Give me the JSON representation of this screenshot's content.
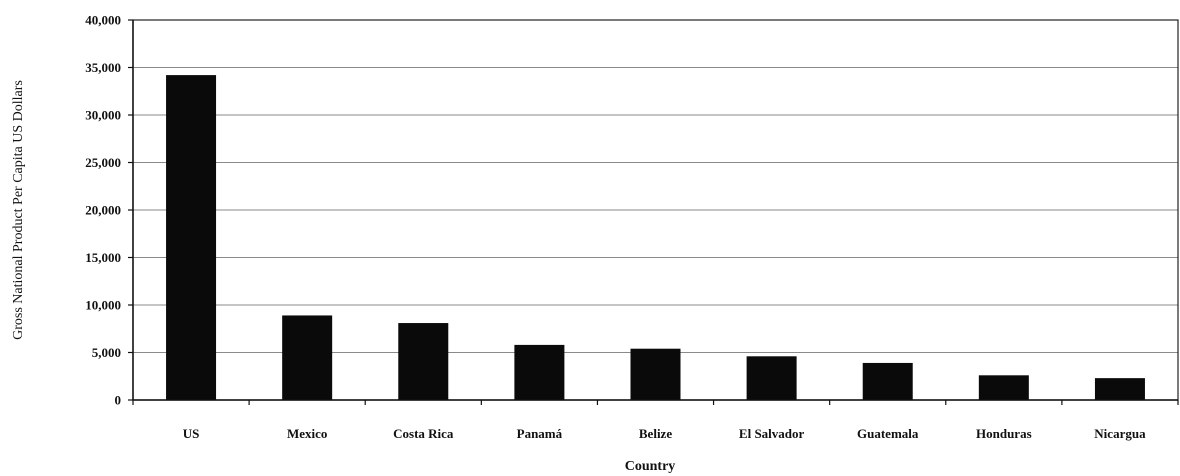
{
  "chart_data": {
    "type": "bar",
    "title": "",
    "xlabel": "Country",
    "ylabel": "Gross National Product Per Capita US Dollars",
    "categories": [
      "US",
      "Mexico",
      "Costa Rica",
      "Panamá",
      "Belize",
      "El Salvador",
      "Guatemala",
      "Honduras",
      "Nicargua"
    ],
    "values": [
      34200,
      8900,
      8100,
      5800,
      5400,
      4600,
      3900,
      2600,
      2300
    ],
    "ylim": [
      0,
      40000
    ],
    "yticks": [
      0,
      5000,
      10000,
      15000,
      20000,
      25000,
      30000,
      35000,
      40000
    ],
    "ytick_labels": [
      "0",
      "5,000",
      "10,000",
      "15,000",
      "20,000",
      "25,000",
      "30,000",
      "35,000",
      "40,000"
    ],
    "grid": true,
    "legend": "none",
    "colors": {
      "bar": "#0a0a0a",
      "grid": "#8a8a8a",
      "axis": "#111111",
      "plot_border": "#222222"
    }
  }
}
